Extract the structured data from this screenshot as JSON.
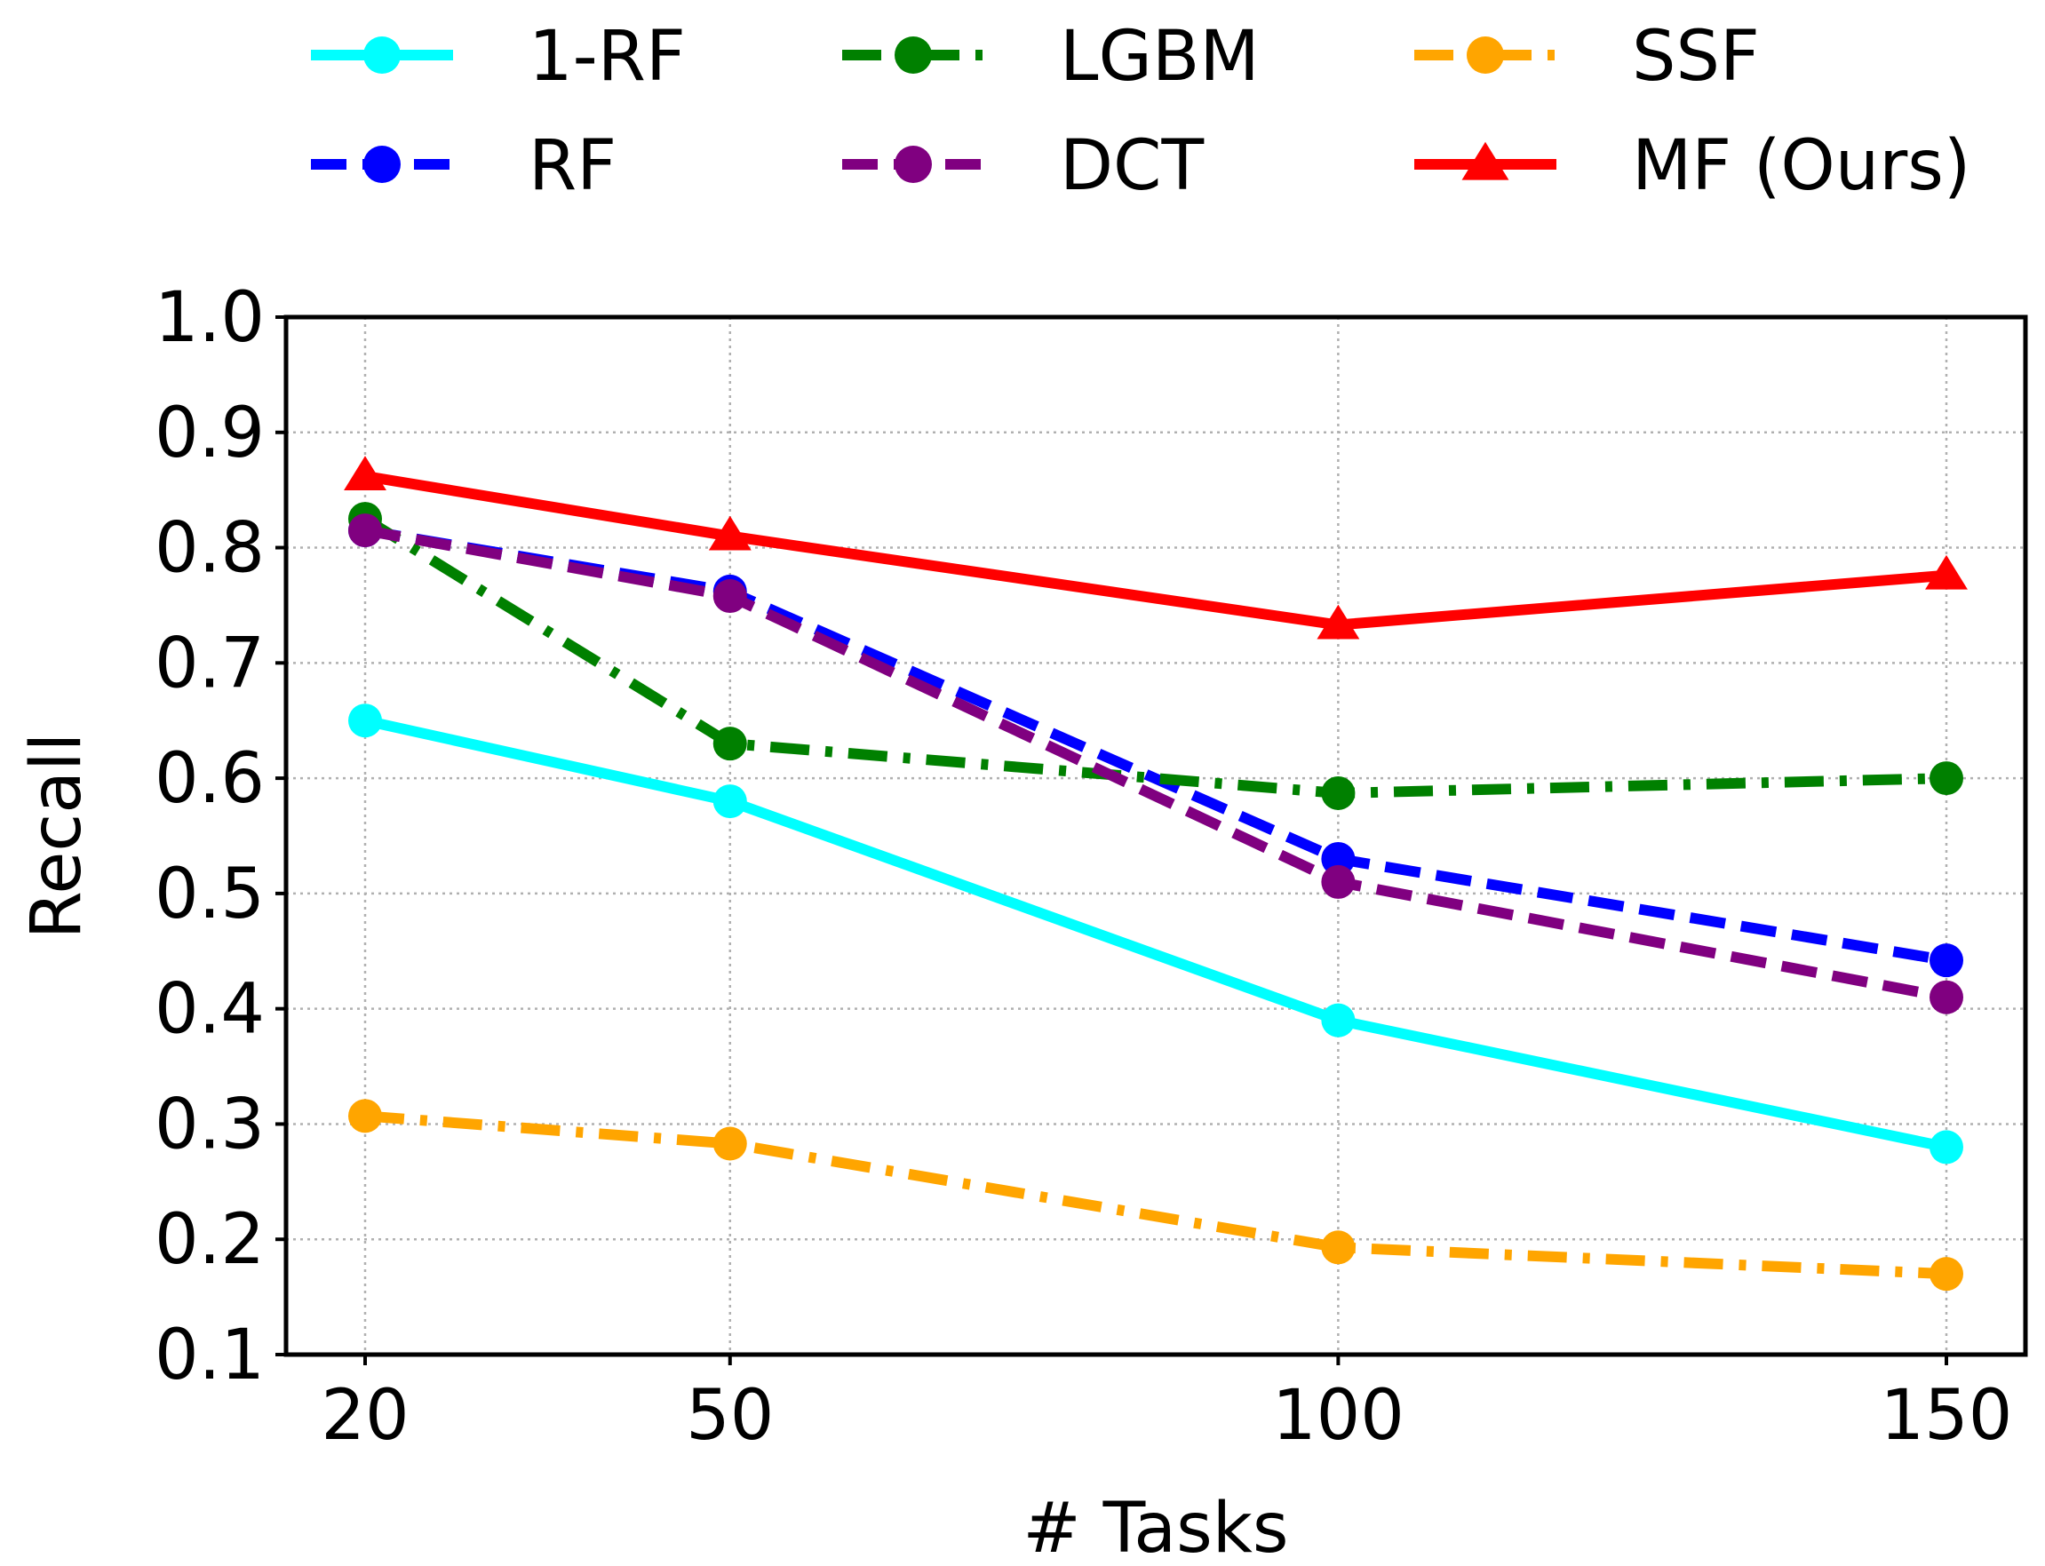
{
  "chart_data": {
    "type": "line",
    "title": "",
    "xlabel": "# Tasks",
    "ylabel": "Recall",
    "x": [
      20,
      50,
      100,
      150
    ],
    "x_tick_labels": [
      "20",
      "50",
      "100",
      "150"
    ],
    "xlim": [
      13.5,
      156.5
    ],
    "ylim": [
      0.1,
      1.0
    ],
    "y_ticks": [
      0.1,
      0.2,
      0.3,
      0.4,
      0.5,
      0.6,
      0.7,
      0.8,
      0.9,
      1.0
    ],
    "y_tick_labels": [
      "0.1",
      "0.2",
      "0.3",
      "0.4",
      "0.5",
      "0.6",
      "0.7",
      "0.8",
      "0.9",
      "1.0"
    ],
    "grid": true,
    "legend_position": "top, outside plot, 3 columns",
    "series": [
      {
        "name": "1-RF",
        "values": [
          0.65,
          0.58,
          0.39,
          0.28
        ],
        "color": "#00ffff",
        "line_style": "solid",
        "marker": "circle"
      },
      {
        "name": "RF",
        "values": [
          0.815,
          0.762,
          0.53,
          0.442
        ],
        "color": "#0000ff",
        "line_style": "dashed",
        "marker": "circle"
      },
      {
        "name": "LGBM",
        "values": [
          0.825,
          0.63,
          0.587,
          0.6
        ],
        "color": "#008000",
        "line_style": "dashdot",
        "marker": "circle"
      },
      {
        "name": "DCT",
        "values": [
          0.815,
          0.758,
          0.51,
          0.41
        ],
        "color": "#800080",
        "line_style": "dashed",
        "marker": "circle"
      },
      {
        "name": "SSF",
        "values": [
          0.307,
          0.283,
          0.193,
          0.17
        ],
        "color": "#ffa500",
        "line_style": "dashdot",
        "marker": "circle"
      },
      {
        "name": "MF (Ours)",
        "values": [
          0.862,
          0.81,
          0.733,
          0.776
        ],
        "color": "#ff0000",
        "line_style": "solid",
        "marker": "triangle"
      }
    ]
  }
}
